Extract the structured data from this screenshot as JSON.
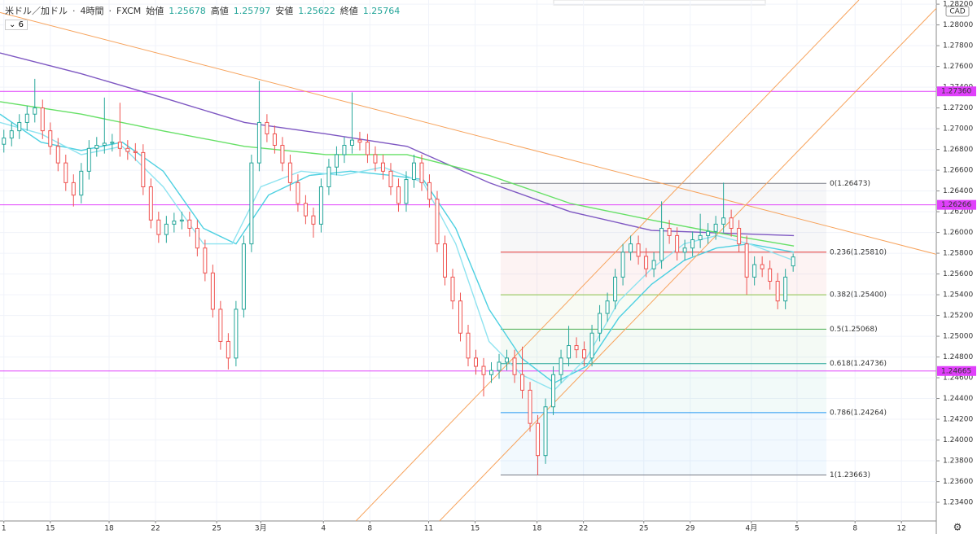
{
  "chart_data": {
    "type": "candlestick",
    "title": "米ドル／加ドル",
    "interval": "4時間",
    "source": "FXCM",
    "ohlc_labels": [
      "始値",
      "高値",
      "安値",
      "終値"
    ],
    "indicator_count": 6,
    "currency": "CAD",
    "up_color": "#26a69a",
    "down_color": "#ef5350",
    "grid": true,
    "xlim": [
      0,
      121
    ],
    "xticks": [
      {
        "value": 0.5,
        "label": "1"
      },
      {
        "value": 6.5,
        "label": "15"
      },
      {
        "value": 14.1,
        "label": "18"
      },
      {
        "value": 20.1,
        "label": "22"
      },
      {
        "value": 28,
        "label": "25"
      },
      {
        "value": 33.7,
        "label": "3月"
      },
      {
        "value": 41.8,
        "label": "4"
      },
      {
        "value": 47.8,
        "label": "8"
      },
      {
        "value": 55.4,
        "label": "11"
      },
      {
        "value": 61.4,
        "label": "15"
      },
      {
        "value": 69.4,
        "label": "18"
      },
      {
        "value": 75.4,
        "label": "22"
      },
      {
        "value": 83.2,
        "label": "25"
      },
      {
        "value": 89.2,
        "label": "29"
      },
      {
        "value": 97.1,
        "label": "4月"
      },
      {
        "value": 103,
        "label": "5"
      },
      {
        "value": 110.5,
        "label": "8"
      },
      {
        "value": 116.5,
        "label": "12"
      }
    ],
    "ylim": [
      1.2322,
      1.2824
    ],
    "yticks": [
      {
        "value": 1.234,
        "label": "1.23400"
      },
      {
        "value": 1.236,
        "label": "1.23600"
      },
      {
        "value": 1.238,
        "label": "1.23800"
      },
      {
        "value": 1.24,
        "label": "1.24000"
      },
      {
        "value": 1.242,
        "label": "1.24200"
      },
      {
        "value": 1.244,
        "label": "1.24400"
      },
      {
        "value": 1.246,
        "label": "1.24600"
      },
      {
        "value": 1.248,
        "label": "1.24800"
      },
      {
        "value": 1.25,
        "label": "1.25000"
      },
      {
        "value": 1.252,
        "label": "1.25200"
      },
      {
        "value": 1.254,
        "label": "1.25400"
      },
      {
        "value": 1.256,
        "label": "1.25600"
      },
      {
        "value": 1.258,
        "label": "1.25800"
      },
      {
        "value": 1.26,
        "label": "1.26000"
      },
      {
        "value": 1.262,
        "label": "1.26200"
      },
      {
        "value": 1.264,
        "label": "1.26400"
      },
      {
        "value": 1.266,
        "label": "1.26600"
      },
      {
        "value": 1.268,
        "label": "1.26800"
      },
      {
        "value": 1.27,
        "label": "1.27000"
      },
      {
        "value": 1.272,
        "label": "1.27200"
      },
      {
        "value": 1.274,
        "label": "1.27400"
      },
      {
        "value": 1.276,
        "label": "1.27600"
      },
      {
        "value": 1.278,
        "label": "1.27800"
      },
      {
        "value": 1.28,
        "label": "1.28000"
      },
      {
        "value": 1.282,
        "label": "1.28200"
      }
    ],
    "candles": [
      [
        1.2685,
        1.2699,
        1.2677,
        1.2691
      ],
      [
        1.2691,
        1.2706,
        1.2683,
        1.2698
      ],
      [
        1.2698,
        1.2714,
        1.269,
        1.2706
      ],
      [
        1.2706,
        1.2722,
        1.2698,
        1.2714
      ],
      [
        1.2714,
        1.2748,
        1.2706,
        1.272
      ],
      [
        1.272,
        1.2728,
        1.269,
        1.2698
      ],
      [
        1.2698,
        1.2706,
        1.2675,
        1.2683
      ],
      [
        1.2683,
        1.2691,
        1.2659,
        1.2667
      ],
      [
        1.2667,
        1.2675,
        1.264,
        1.2648
      ],
      [
        1.2648,
        1.2656,
        1.2625,
        1.2636
      ],
      [
        1.2636,
        1.2667,
        1.2628,
        1.2659
      ],
      [
        1.2659,
        1.2689,
        1.2651,
        1.2681
      ],
      [
        1.2681,
        1.2692,
        1.2673,
        1.2684
      ],
      [
        1.2684,
        1.273,
        1.2676,
        1.2686
      ],
      [
        1.2686,
        1.2695,
        1.2678,
        1.2687
      ],
      [
        1.2687,
        1.2725,
        1.2673,
        1.2681
      ],
      [
        1.2681,
        1.2689,
        1.267,
        1.2678
      ],
      [
        1.2678,
        1.2686,
        1.2669,
        1.2677
      ],
      [
        1.2677,
        1.2685,
        1.2636,
        1.2644
      ],
      [
        1.2644,
        1.2652,
        1.2604,
        1.2612
      ],
      [
        1.2612,
        1.262,
        1.259,
        1.2598
      ],
      [
        1.2598,
        1.2616,
        1.259,
        1.2608
      ],
      [
        1.2608,
        1.2619,
        1.26,
        1.2611
      ],
      [
        1.2611,
        1.262,
        1.2603,
        1.2612
      ],
      [
        1.2612,
        1.262,
        1.2596,
        1.2604
      ],
      [
        1.2604,
        1.2612,
        1.2577,
        1.2585
      ],
      [
        1.2585,
        1.2593,
        1.2553,
        1.2561
      ],
      [
        1.2561,
        1.2569,
        1.2518,
        1.2526
      ],
      [
        1.2526,
        1.2534,
        1.2487,
        1.2495
      ],
      [
        1.2495,
        1.2503,
        1.2468,
        1.2479
      ],
      [
        1.2479,
        1.2534,
        1.2471,
        1.2526
      ],
      [
        1.2526,
        1.2597,
        1.2518,
        1.2589
      ],
      [
        1.2589,
        1.2675,
        1.2581,
        1.2667
      ],
      [
        1.2667,
        1.2746,
        1.2659,
        1.2706
      ],
      [
        1.2706,
        1.2714,
        1.2687,
        1.2695
      ],
      [
        1.2695,
        1.2703,
        1.2676,
        1.2684
      ],
      [
        1.2684,
        1.2692,
        1.2659,
        1.2667
      ],
      [
        1.2667,
        1.2675,
        1.264,
        1.2648
      ],
      [
        1.2648,
        1.2656,
        1.262,
        1.2628
      ],
      [
        1.2628,
        1.2636,
        1.2608,
        1.2616
      ],
      [
        1.2616,
        1.2624,
        1.2595,
        1.2608
      ],
      [
        1.2608,
        1.2652,
        1.26,
        1.2644
      ],
      [
        1.2644,
        1.2671,
        1.2636,
        1.2663
      ],
      [
        1.2663,
        1.2683,
        1.2655,
        1.2675
      ],
      [
        1.2675,
        1.2692,
        1.2667,
        1.2684
      ],
      [
        1.2684,
        1.2735,
        1.2676,
        1.2689
      ],
      [
        1.2689,
        1.2697,
        1.2679,
        1.2687
      ],
      [
        1.2687,
        1.2695,
        1.2667,
        1.2675
      ],
      [
        1.2675,
        1.2683,
        1.2659,
        1.2667
      ],
      [
        1.2667,
        1.2675,
        1.2651,
        1.2659
      ],
      [
        1.2659,
        1.2667,
        1.2636,
        1.2644
      ],
      [
        1.2644,
        1.2652,
        1.262,
        1.2628
      ],
      [
        1.2628,
        1.2659,
        1.262,
        1.2651
      ],
      [
        1.2651,
        1.2675,
        1.2643,
        1.2667
      ],
      [
        1.2667,
        1.2675,
        1.264,
        1.2648
      ],
      [
        1.2648,
        1.2656,
        1.2624,
        1.2632
      ],
      [
        1.2632,
        1.264,
        1.2581,
        1.2589
      ],
      [
        1.2589,
        1.2597,
        1.2549,
        1.2557
      ],
      [
        1.2557,
        1.2565,
        1.2526,
        1.2534
      ],
      [
        1.2534,
        1.2542,
        1.2495,
        1.2503
      ],
      [
        1.2503,
        1.2511,
        1.2471,
        1.2479
      ],
      [
        1.2479,
        1.2487,
        1.2463,
        1.2471
      ],
      [
        1.2471,
        1.2479,
        1.2442,
        1.2463
      ],
      [
        1.2463,
        1.2475,
        1.2455,
        1.2467
      ],
      [
        1.2467,
        1.2483,
        1.2459,
        1.2475
      ],
      [
        1.2475,
        1.2487,
        1.2467,
        1.2479
      ],
      [
        1.2479,
        1.2487,
        1.2455,
        1.2463
      ],
      [
        1.2463,
        1.249,
        1.244,
        1.2448
      ],
      [
        1.2448,
        1.2456,
        1.2408,
        1.2416
      ],
      [
        1.2416,
        1.2424,
        1.2366,
        1.2385
      ],
      [
        1.2385,
        1.244,
        1.2377,
        1.2432
      ],
      [
        1.2432,
        1.2471,
        1.2424,
        1.2463
      ],
      [
        1.2463,
        1.2487,
        1.2455,
        1.2479
      ],
      [
        1.2479,
        1.251,
        1.2471,
        1.2491
      ],
      [
        1.2491,
        1.2499,
        1.2479,
        1.2487
      ],
      [
        1.2487,
        1.2495,
        1.2471,
        1.2479
      ],
      [
        1.2479,
        1.2511,
        1.2471,
        1.2503
      ],
      [
        1.2503,
        1.253,
        1.2495,
        1.2522
      ],
      [
        1.2522,
        1.2542,
        1.2514,
        1.2534
      ],
      [
        1.2534,
        1.2565,
        1.2526,
        1.2557
      ],
      [
        1.2557,
        1.2589,
        1.2549,
        1.2581
      ],
      [
        1.2581,
        1.2597,
        1.2573,
        1.2589
      ],
      [
        1.2589,
        1.2597,
        1.2569,
        1.2577
      ],
      [
        1.2577,
        1.2585,
        1.2557,
        1.2565
      ],
      [
        1.2565,
        1.2581,
        1.2557,
        1.2573
      ],
      [
        1.2573,
        1.263,
        1.2565,
        1.2604
      ],
      [
        1.2604,
        1.2612,
        1.2589,
        1.2597
      ],
      [
        1.2597,
        1.2605,
        1.2573,
        1.2581
      ],
      [
        1.2581,
        1.2593,
        1.2573,
        1.2585
      ],
      [
        1.2585,
        1.2601,
        1.2577,
        1.2593
      ],
      [
        1.2593,
        1.2618,
        1.2585,
        1.2597
      ],
      [
        1.2597,
        1.2609,
        1.2589,
        1.2601
      ],
      [
        1.2601,
        1.2616,
        1.2593,
        1.2608
      ],
      [
        1.2608,
        1.2648,
        1.26,
        1.2614
      ],
      [
        1.2614,
        1.2622,
        1.2596,
        1.2604
      ],
      [
        1.2604,
        1.2612,
        1.2581,
        1.2589
      ],
      [
        1.2589,
        1.2597,
        1.254,
        1.2557
      ],
      [
        1.2557,
        1.2577,
        1.2549,
        1.2569
      ],
      [
        1.2569,
        1.2577,
        1.2557,
        1.2565
      ],
      [
        1.2565,
        1.2573,
        1.2545,
        1.2553
      ],
      [
        1.2553,
        1.2561,
        1.2526,
        1.2534
      ],
      [
        1.2534,
        1.2565,
        1.2526,
        1.2557
      ],
      [
        1.25678,
        1.25797,
        1.25622,
        1.25764
      ]
    ],
    "series": [
      {
        "color": "#7e57c2",
        "x": [
          0,
          10.5,
          21,
          31.6,
          42.1,
          52.6,
          63.2,
          73.7,
          84.2,
          94.7,
          102.6
        ],
        "values": [
          1.2773,
          1.2753,
          1.273,
          1.2706,
          1.2695,
          1.2683,
          1.2648,
          1.262,
          1.2602,
          1.2599,
          1.2597
        ]
      },
      {
        "color": "#66e066",
        "x": [
          0,
          10.5,
          21,
          31.6,
          42.1,
          52.6,
          63.2,
          73.7,
          84.2,
          94.7,
          102.6
        ],
        "values": [
          1.2726,
          1.2714,
          1.2698,
          1.2683,
          1.2675,
          1.2675,
          1.2655,
          1.2628,
          1.2612,
          1.2597,
          1.2587
        ]
      },
      {
        "color": "#4dd0e1",
        "x": [
          0,
          5.3,
          10.5,
          15.8,
          21.1,
          26.3,
          30.5,
          34.7,
          40,
          45.3,
          50.5,
          54.7,
          58.9,
          63.2,
          67.4,
          71.6,
          75.8,
          80,
          84.2,
          88.4,
          92.6,
          96.8,
          102.6
        ],
        "values": [
          1.2714,
          1.2687,
          1.2679,
          1.2687,
          1.2659,
          1.2604,
          1.2589,
          1.2636,
          1.2655,
          1.2659,
          1.2655,
          1.2651,
          1.2604,
          1.2526,
          1.2479,
          1.2455,
          1.2471,
          1.2518,
          1.255,
          1.2573,
          1.2585,
          1.2589,
          1.2581
        ]
      },
      {
        "color": "#8fe3f0",
        "x": [
          0,
          5.3,
          10.5,
          15.8,
          21.1,
          26.3,
          30,
          33.7,
          38.9,
          44.2,
          49.5,
          54.7,
          58.9,
          63.2,
          67.4,
          71.6,
          75.8,
          80,
          84.2,
          88.4,
          92.6,
          96.8,
          102.6
        ],
        "values": [
          1.2706,
          1.2695,
          1.2675,
          1.2683,
          1.2644,
          1.2589,
          1.2589,
          1.2644,
          1.2659,
          1.2655,
          1.2663,
          1.2648,
          1.2589,
          1.2495,
          1.2463,
          1.2448,
          1.2479,
          1.2534,
          1.2565,
          1.2589,
          1.2597,
          1.2589,
          1.2573
        ]
      }
    ],
    "trend_lines": [
      {
        "color": "#f7a35c",
        "x": [
          0,
          121
        ],
        "values": [
          1.2812,
          1.2579
        ]
      },
      {
        "color": "#f7a35c",
        "x": [
          46,
          111
        ],
        "values": [
          1.2322,
          1.2824
        ]
      },
      {
        "color": "#f7a35c",
        "x": [
          56.8,
          121
        ],
        "values": [
          1.2322,
          1.2816
        ]
      }
    ],
    "horizontal_lines": {
      "color": "#e040fb",
      "levels": [
        {
          "value": 1.2736,
          "label": "1.27360"
        },
        {
          "value": 1.26266,
          "label": "1.26266"
        },
        {
          "value": 1.24665,
          "label": "1.24665"
        }
      ]
    },
    "fib": {
      "x": [
        64.7,
        106.8
      ],
      "levels": [
        {
          "value": 1.26473,
          "label": "0(1.26473)",
          "color": "#787b86"
        },
        {
          "value": 1.2581,
          "label": "0.236(1.25810)",
          "color": "#e53935"
        },
        {
          "value": 1.254,
          "label": "0.382(1.25400)",
          "color": "#8bc34a"
        },
        {
          "value": 1.25068,
          "label": "0.5(1.25068)",
          "color": "#4caf50"
        },
        {
          "value": 1.24736,
          "label": "0.618(1.24736)",
          "color": "#26a69a"
        },
        {
          "value": 1.24264,
          "label": "0.786(1.24264)",
          "color": "#2196f3"
        },
        {
          "value": 1.23663,
          "label": "1(1.23663)",
          "color": "#787b86"
        }
      ]
    }
  }
}
